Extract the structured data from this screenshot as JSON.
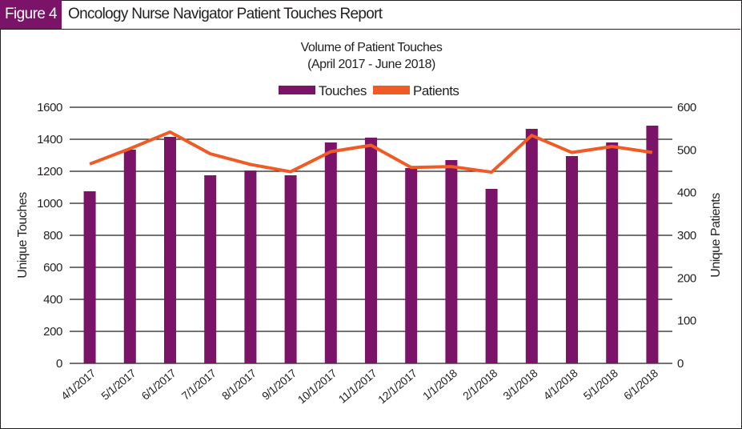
{
  "figure": {
    "label": "Figure 4",
    "title": "Oncology Nurse Navigator Patient Touches Report"
  },
  "colors": {
    "touches": "#7b1369",
    "patients": "#f15a24",
    "header_bg": "#7b1369",
    "text": "#231f20"
  },
  "chart_data": {
    "type": "bar+line",
    "title": "Volume of Patient Touches",
    "subtitle": "(April 2017 - June 2018)",
    "xlabel": "",
    "ylabel": "Unique Touches",
    "y2label": "Unique Patients",
    "ylim": [
      0,
      1600
    ],
    "y2lim": [
      0,
      600
    ],
    "yticks": [
      0,
      200,
      400,
      600,
      800,
      1000,
      1200,
      1400,
      1600
    ],
    "y2ticks": [
      0,
      100,
      200,
      300,
      400,
      500,
      600
    ],
    "grid": true,
    "legend_position": "top-center",
    "categories": [
      "4/1/2017",
      "5/1/2017",
      "6/1/2017",
      "7/1/2017",
      "8/1/2017",
      "9/1/2017",
      "10/1/2017",
      "11/1/2017",
      "12/1/2017",
      "1/1/2018",
      "2/1/2018",
      "3/1/2018",
      "4/1/2018",
      "5/1/2018",
      "6/1/2018"
    ],
    "series": [
      {
        "name": "Touches",
        "type": "bar",
        "axis": "left",
        "values": [
          1075,
          1335,
          1415,
          1175,
          1205,
          1175,
          1380,
          1410,
          1220,
          1270,
          1090,
          1465,
          1295,
          1380,
          1485
        ]
      },
      {
        "name": "Patients",
        "type": "line",
        "axis": "right",
        "values": [
          467,
          503,
          542,
          491,
          466,
          449,
          496,
          511,
          459,
          461,
          448,
          534,
          494,
          508,
          494
        ]
      }
    ]
  }
}
